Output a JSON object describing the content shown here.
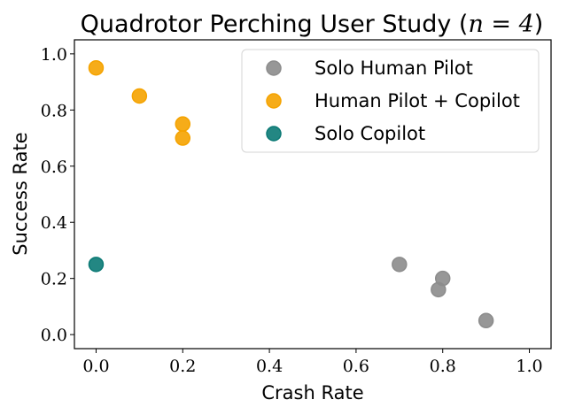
{
  "chart_data": {
    "type": "scatter",
    "title": "Quadrotor Perching User Study (",
    "title_math": "n = 4",
    "title_close": ")",
    "xlabel": "Crash Rate",
    "ylabel": "Success Rate",
    "xlim": [
      -0.05,
      1.05
    ],
    "ylim": [
      -0.05,
      1.05
    ],
    "xticks": [
      "0.0",
      "0.2",
      "0.4",
      "0.6",
      "0.8",
      "1.0"
    ],
    "yticks": [
      "0.0",
      "0.2",
      "0.4",
      "0.6",
      "0.8",
      "1.0"
    ],
    "grid": false,
    "legend_position": "top-right",
    "series": [
      {
        "name": "Solo Human Pilot",
        "color": "#8c8c8c",
        "points": [
          {
            "x": 0.7,
            "y": 0.25
          },
          {
            "x": 0.8,
            "y": 0.2
          },
          {
            "x": 0.79,
            "y": 0.16
          },
          {
            "x": 0.9,
            "y": 0.05
          }
        ]
      },
      {
        "name": "Human Pilot + Copilot",
        "color": "#f5a300",
        "points": [
          {
            "x": 0.0,
            "y": 0.95
          },
          {
            "x": 0.1,
            "y": 0.85
          },
          {
            "x": 0.2,
            "y": 0.75
          },
          {
            "x": 0.2,
            "y": 0.7
          }
        ]
      },
      {
        "name": "Solo Copilot",
        "color": "#0b7a75",
        "points": [
          {
            "x": 0.0,
            "y": 0.25
          }
        ]
      }
    ]
  }
}
